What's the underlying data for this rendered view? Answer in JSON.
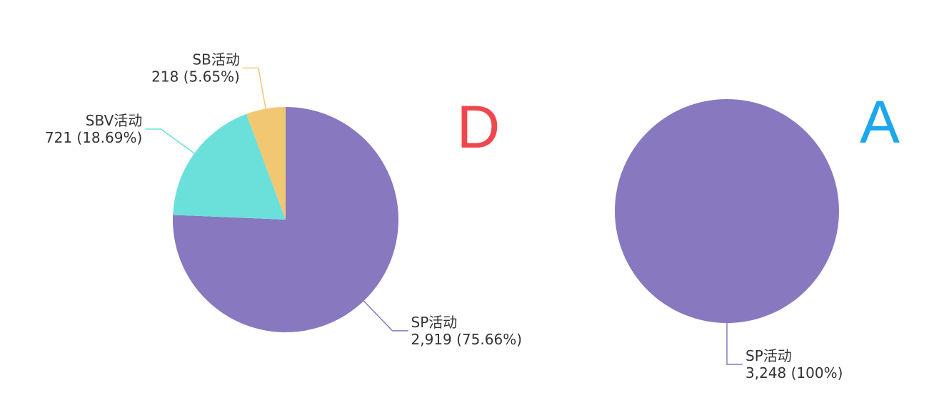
{
  "chart_data": [
    {
      "type": "pie",
      "title": "D",
      "title_color": "#f0474e",
      "categories": [
        "SP活动",
        "SBV活动",
        "SB活动"
      ],
      "values": [
        2919,
        721,
        218
      ],
      "value_labels": [
        "2,919 (75.66%)",
        "721 (18.69%)",
        "218 (5.65%)"
      ],
      "colors": [
        "#8878bf",
        "#6be0da",
        "#f2c772"
      ]
    },
    {
      "type": "pie",
      "title": "A",
      "title_color": "#1aa7ec",
      "categories": [
        "SP活动"
      ],
      "values": [
        3248
      ],
      "value_labels": [
        "3,248 (100%)"
      ],
      "colors": [
        "#8878bf"
      ]
    }
  ]
}
